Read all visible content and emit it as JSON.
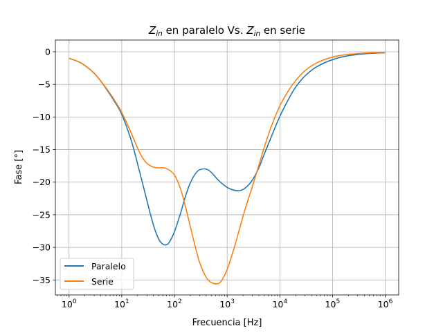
{
  "chart_data": {
    "type": "line",
    "title": "Z_in en paralelo Vs. Z_in en serie",
    "title_parts": {
      "sym1": "Z",
      "sub1": "in",
      "mid": " en paralelo Vs. ",
      "sym2": "Z",
      "sub2": "in",
      "end": " en serie"
    },
    "xlabel": "Frecuencia [Hz]",
    "ylabel": "Fase [°]",
    "xscale": "log",
    "xlim": [
      0.55,
      1800000
    ],
    "ylim": [
      -37.3,
      1.8
    ],
    "grid": true,
    "legend_position": "lower-left",
    "xticks": [
      {
        "value": 1,
        "base": "10",
        "exp": "0"
      },
      {
        "value": 10,
        "base": "10",
        "exp": "1"
      },
      {
        "value": 100,
        "base": "10",
        "exp": "2"
      },
      {
        "value": 1000,
        "base": "10",
        "exp": "3"
      },
      {
        "value": 10000,
        "base": "10",
        "exp": "4"
      },
      {
        "value": 100000,
        "base": "10",
        "exp": "5"
      },
      {
        "value": 1000000,
        "base": "10",
        "exp": "6"
      }
    ],
    "yticks": [
      {
        "value": 0,
        "label": "0"
      },
      {
        "value": -5,
        "label": "−5"
      },
      {
        "value": -10,
        "label": "−10"
      },
      {
        "value": -15,
        "label": "−15"
      },
      {
        "value": -20,
        "label": "−20"
      },
      {
        "value": -25,
        "label": "−25"
      },
      {
        "value": -30,
        "label": "−30"
      },
      {
        "value": -35,
        "label": "−35"
      }
    ],
    "series": [
      {
        "name": "Paralelo",
        "color": "#1f77b4",
        "x": [
          1,
          1.5,
          2,
          3,
          4,
          5,
          7,
          10,
          15,
          20,
          30,
          40,
          50,
          60,
          70,
          80,
          100,
          130,
          160,
          200,
          250,
          300,
          400,
          500,
          700,
          1000,
          1300,
          1700,
          2200,
          3000,
          4000,
          5000,
          7000,
          10000,
          15000,
          20000,
          30000,
          50000,
          100000,
          200000,
          500000,
          1000000
        ],
        "y": [
          -1.0,
          -1.5,
          -2.1,
          -3.3,
          -4.5,
          -5.6,
          -7.4,
          -9.6,
          -13.5,
          -17.2,
          -22.8,
          -26.6,
          -28.7,
          -29.5,
          -29.6,
          -29.2,
          -27.6,
          -24.8,
          -22.3,
          -20.1,
          -18.7,
          -18.1,
          -18.0,
          -18.5,
          -19.8,
          -20.8,
          -21.2,
          -21.3,
          -20.9,
          -19.7,
          -17.8,
          -15.8,
          -12.9,
          -9.9,
          -7.1,
          -5.4,
          -3.7,
          -2.3,
          -1.2,
          -0.6,
          -0.25,
          -0.15
        ]
      },
      {
        "name": "Serie",
        "color": "#ff7f0e",
        "x": [
          1,
          1.5,
          2,
          3,
          4,
          5,
          7,
          10,
          15,
          20,
          25,
          30,
          40,
          50,
          70,
          100,
          130,
          160,
          200,
          250,
          300,
          400,
          500,
          600,
          650,
          700,
          800,
          1000,
          1300,
          1700,
          2200,
          3000,
          4000,
          5000,
          7000,
          10000,
          15000,
          20000,
          30000,
          50000,
          100000,
          200000,
          500000,
          1000000
        ],
        "y": [
          -1.0,
          -1.5,
          -2.1,
          -3.3,
          -4.5,
          -5.5,
          -7.2,
          -9.3,
          -12.4,
          -14.8,
          -16.3,
          -17.1,
          -17.7,
          -17.8,
          -17.9,
          -18.9,
          -21.0,
          -23.6,
          -26.8,
          -30.0,
          -32.3,
          -34.6,
          -35.4,
          -35.6,
          -35.6,
          -35.5,
          -35.0,
          -33.4,
          -30.6,
          -27.3,
          -24.1,
          -20.7,
          -17.4,
          -14.8,
          -11.3,
          -8.3,
          -5.8,
          -4.4,
          -2.9,
          -1.7,
          -0.8,
          -0.4,
          -0.15,
          -0.1
        ]
      }
    ]
  }
}
